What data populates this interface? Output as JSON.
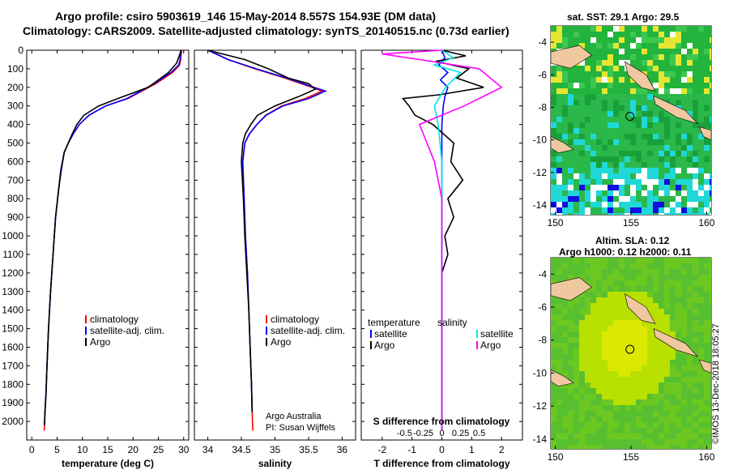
{
  "header": {
    "line1": "Argo profile: csiro 5903619_146 15-May-2014 8.557S 154.93E (DM data)",
    "line2": "Climatology: CARS2009. Satellite-adjusted climatology: synTS_20140515.nc (0.73d earlier)"
  },
  "colors": {
    "climatology": "#ff0000",
    "satellite": "#0000ff",
    "argo": "#000000",
    "sat_salinity": "#00e5e5",
    "argo_salinity": "#ff00ff"
  },
  "chart_data": [
    {
      "type": "line",
      "id": "temperature",
      "xlabel": "temperature (deg C)",
      "ylabel": "",
      "xlim": [
        -1,
        31
      ],
      "ylim": [
        2100,
        0
      ],
      "xticks": [
        0,
        5,
        10,
        15,
        20,
        25,
        30
      ],
      "yticks": [
        0,
        100,
        200,
        300,
        400,
        500,
        600,
        700,
        800,
        900,
        1000,
        1100,
        1200,
        1300,
        1400,
        1500,
        1600,
        1700,
        1800,
        1900,
        2000
      ],
      "legend": [
        "climatology",
        "satellite-adj. clim.",
        "Argo"
      ],
      "series": [
        {
          "name": "climatology",
          "x": [
            29.6,
            29.4,
            29.2,
            27.8,
            24.5,
            19.0,
            14.6,
            11.3,
            9.4,
            8.2,
            7.2,
            6.4,
            5.7,
            5.3,
            4.7,
            4.2,
            3.7,
            3.3,
            3.0,
            2.8,
            2.6,
            2.5,
            2.45
          ],
          "y": [
            0,
            50,
            80,
            120,
            180,
            260,
            300,
            350,
            400,
            450,
            500,
            550,
            650,
            750,
            900,
            1100,
            1300,
            1500,
            1700,
            1850,
            1950,
            2020,
            2050
          ]
        },
        {
          "name": "satellite-adj. clim.",
          "x": [
            29.4,
            29.3,
            29.0,
            27.5,
            24.2,
            18.8,
            14.6,
            11.3,
            9.4,
            8.2,
            7.2,
            6.4,
            5.7,
            5.3,
            4.7,
            4.2,
            3.7,
            3.3,
            3.0,
            2.8,
            2.6,
            2.5
          ],
          "y": [
            0,
            50,
            80,
            120,
            180,
            260,
            300,
            350,
            400,
            450,
            500,
            550,
            650,
            750,
            900,
            1100,
            1300,
            1500,
            1700,
            1850,
            1950,
            2020
          ]
        },
        {
          "name": "Argo",
          "x": [
            29.5,
            29.0,
            28.6,
            27.0,
            23.0,
            18.0,
            13.2,
            10.3,
            8.9,
            8.0,
            7.2,
            6.4,
            5.8,
            5.3,
            4.7,
            4.2,
            3.7,
            3.3,
            3.0,
            2.8,
            2.6,
            2.5
          ],
          "y": [
            0,
            40,
            70,
            120,
            200,
            250,
            300,
            350,
            400,
            450,
            500,
            550,
            650,
            750,
            900,
            1100,
            1300,
            1500,
            1700,
            1850,
            1950,
            2020
          ]
        }
      ]
    },
    {
      "type": "line",
      "id": "salinity",
      "xlabel": "salinity",
      "xlim": [
        33.8,
        36.2
      ],
      "ylim": [
        2100,
        0
      ],
      "xticks": [
        34,
        34.5,
        35,
        35.5,
        36
      ],
      "legend": [
        "climatology",
        "satellite-adj. clim.",
        "Argo"
      ],
      "annotation": [
        "Argo Australia",
        "PI: Susan Wijffels"
      ],
      "series": [
        {
          "name": "climatology",
          "x": [
            34.02,
            34.3,
            34.7,
            35.15,
            35.55,
            35.7,
            35.45,
            35.1,
            34.86,
            34.73,
            34.62,
            34.55,
            34.52,
            34.54,
            34.56,
            34.59,
            34.61,
            34.63,
            34.65,
            34.66,
            34.67
          ],
          "y": [
            0,
            50,
            100,
            150,
            200,
            220,
            260,
            300,
            350,
            400,
            450,
            500,
            600,
            800,
            1000,
            1200,
            1400,
            1600,
            1800,
            1950,
            2050
          ]
        },
        {
          "name": "satellite-adj. clim.",
          "x": [
            34.0,
            34.3,
            34.72,
            35.18,
            35.58,
            35.75,
            35.5,
            35.12,
            34.87,
            34.73,
            34.62,
            34.55,
            34.52,
            34.54,
            34.56,
            34.59,
            34.61,
            34.63,
            34.65,
            34.66
          ],
          "y": [
            0,
            50,
            100,
            150,
            200,
            220,
            260,
            300,
            350,
            400,
            450,
            500,
            600,
            800,
            1000,
            1200,
            1400,
            1600,
            1800,
            1950
          ]
        },
        {
          "name": "Argo",
          "x": [
            34.0,
            34.55,
            34.9,
            35.2,
            35.5,
            35.6,
            35.35,
            35.0,
            34.74,
            34.64,
            34.56,
            34.52,
            34.5,
            34.53,
            34.55,
            34.58,
            34.61,
            34.63,
            34.65,
            34.66
          ],
          "y": [
            0,
            50,
            100,
            150,
            180,
            210,
            250,
            300,
            350,
            400,
            450,
            500,
            600,
            800,
            1000,
            1200,
            1400,
            1600,
            1800,
            1950
          ]
        }
      ]
    },
    {
      "type": "line",
      "id": "difference",
      "xlabel": "T difference from climatology",
      "xlabel_top": "S difference from climatology",
      "xlim": [
        -2.7,
        2.7
      ],
      "ylim": [
        2100,
        0
      ],
      "xticks": [
        -2,
        -1,
        0,
        1,
        2
      ],
      "sticks": [
        "-0.5",
        "-0.25",
        "0",
        "0.25",
        "0.5"
      ],
      "legend_left_title": "temperature",
      "legend_right_title": "salinity",
      "legend_left": [
        "satellite",
        "Argo"
      ],
      "legend_right": [
        "satellite",
        "Argo"
      ],
      "series": [
        {
          "name": "T satellite",
          "x": [
            0.0,
            0.1,
            -0.1,
            0.2,
            -0.05,
            0.2,
            0.1,
            0.05,
            0.0,
            0.0,
            0.0,
            0.0,
            0.0,
            0.0,
            0.0
          ],
          "y": [
            0,
            40,
            80,
            120,
            160,
            200,
            250,
            300,
            400,
            500,
            700,
            900,
            1200,
            1600,
            2050
          ]
        },
        {
          "name": "T Argo",
          "x": [
            0.0,
            0.8,
            -0.2,
            0.9,
            0.5,
            1.4,
            -0.1,
            -1.3,
            -1.1,
            -0.9,
            -0.3,
            0.4,
            0.3,
            0.7,
            0.2,
            0.4,
            0.1,
            0.2,
            0.0,
            0.0
          ],
          "y": [
            0,
            30,
            60,
            100,
            150,
            200,
            240,
            260,
            300,
            350,
            400,
            500,
            600,
            700,
            800,
            900,
            1000,
            1100,
            1200,
            2050
          ]
        },
        {
          "name": "S satellite",
          "x": [
            0.0,
            0.15,
            -0.1,
            0.25,
            0.05,
            -0.1,
            -0.05,
            0.0,
            0.0,
            0.0,
            0.0
          ],
          "y": [
            0,
            40,
            80,
            120,
            200,
            300,
            400,
            600,
            900,
            1500,
            2050
          ]
        },
        {
          "name": "S Argo",
          "x": [
            0.0,
            -0.8,
            -0.3,
            0.5,
            0.8,
            0.3,
            -0.3,
            -0.2,
            -0.1,
            0.0,
            0.0,
            0.0
          ],
          "y": [
            0,
            20,
            50,
            100,
            200,
            300,
            400,
            500,
            600,
            800,
            1200,
            2050
          ]
        }
      ]
    },
    {
      "type": "heatmap",
      "id": "sst-map",
      "title": "sat. SST: 29.1 Argo: 29.5",
      "xticks": [
        150,
        155,
        160
      ],
      "yticks": [
        -4,
        -6,
        -8,
        -10,
        -12,
        -14
      ]
    },
    {
      "type": "heatmap",
      "id": "sla-map",
      "title_1": "Altim. SLA: 0.12",
      "title_2": "Argo h1000: 0.12 h2000: 0.11",
      "xticks": [
        150,
        155,
        160
      ],
      "yticks": [
        -4,
        -6,
        -8,
        -10,
        -12,
        -14
      ]
    }
  ],
  "footer_stamp": "©IMOS 13-Dec-2018 18:05:27"
}
